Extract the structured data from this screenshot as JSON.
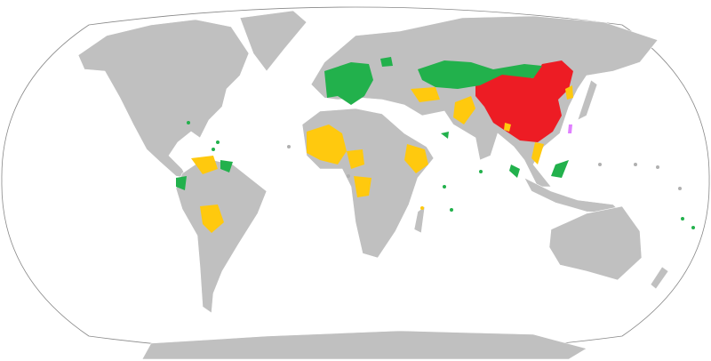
{
  "map": {
    "projection": "winkel-tripel-world",
    "colors": {
      "ocean": "#ffffff",
      "land_default": "#c0c0c0",
      "china": "#ed1c24",
      "green_group": "#22b14c",
      "yellow_group": "#ffc90e",
      "taiwan": "#e080ff"
    }
  }
}
